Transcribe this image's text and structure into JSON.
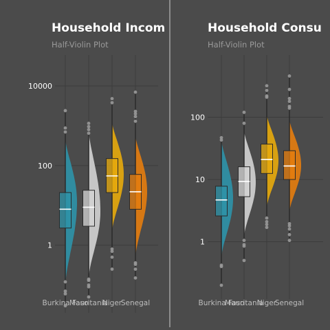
{
  "colors": {
    "background": "#4b4b4b",
    "grid": "#3c3c3c",
    "Burkina Faso": "#2e94aa",
    "Mauritania": "#d4d4d4",
    "Niger": "#e8ab0c",
    "Senegal": "#e57d0e",
    "outlier": "#9a9a9a"
  },
  "chart_data": [
    {
      "type": "half-violin with boxplot",
      "title": "Household Incom",
      "subtitle": "Half-Violin Plot",
      "y_scale": "log10",
      "ylim": [
        0.02,
        60000
      ],
      "y_ticks": [
        {
          "value": 1,
          "label": "1"
        },
        {
          "value": 100,
          "label": "100"
        },
        {
          "value": 10000,
          "label": "10000"
        }
      ],
      "categories": [
        "Burkina Faso",
        "Mauritania",
        "Niger",
        "Senegal"
      ],
      "series": [
        {
          "category": "Burkina Faso",
          "violin_range": [
            0.1,
            450
          ],
          "violin_peak": 12,
          "box": {
            "q1": 2.7,
            "median": 8,
            "q3": 21
          },
          "whiskers": [
            0.04,
            2300
          ],
          "outliers": [
            0.12,
            0.07,
            0.06,
            0.03,
            700,
            880,
            2400
          ]
        },
        {
          "category": "Mauritania",
          "violin_range": [
            0.15,
            700
          ],
          "violin_peak": 7,
          "box": {
            "q1": 3,
            "median": 9,
            "q3": 24
          },
          "whiskers": [
            0.05,
            1200
          ],
          "outliers": [
            0.09,
            0.1,
            0.13,
            0.14,
            0.05,
            650,
            800,
            950,
            1150
          ]
        },
        {
          "category": "Niger",
          "violin_range": [
            2.2,
            1200
          ],
          "violin_peak": 60,
          "box": {
            "q1": 21,
            "median": 55,
            "q3": 150
          },
          "whiskers": [
            0.25,
            4800
          ],
          "outliers": [
            0.25,
            0.5,
            0.7,
            0.8,
            3800,
            4800
          ]
        },
        {
          "category": "Senegal",
          "violin_range": [
            0.5,
            550
          ],
          "violin_peak": 23,
          "box": {
            "q1": 8,
            "median": 22,
            "q3": 60
          },
          "whiskers": [
            0.15,
            7000
          ],
          "outliers": [
            0.15,
            0.25,
            0.33,
            0.36,
            1300,
            1700,
            2000,
            2300,
            7000
          ]
        }
      ]
    },
    {
      "type": "half-violin with boxplot",
      "title": "Household Consu",
      "subtitle": "Half-Violin Plot",
      "y_scale": "log10",
      "ylim": [
        0.12,
        1000
      ],
      "y_ticks": [
        {
          "value": 1,
          "label": "1"
        },
        {
          "value": 10,
          "label": "10"
        },
        {
          "value": 100,
          "label": "100"
        }
      ],
      "categories": [
        "Burkina Faso",
        "Mauritania",
        "Niger",
        "Senegal"
      ],
      "series": [
        {
          "category": "Burkina Faso",
          "violin_range": [
            0.55,
            42
          ],
          "violin_peak": 5,
          "box": {
            "q1": 2.6,
            "median": 4.7,
            "q3": 7.8
          },
          "whiskers": [
            0.2,
            48
          ],
          "outliers": [
            0.2,
            0.4,
            0.42,
            43,
            47
          ]
        },
        {
          "category": "Mauritania",
          "violin_range": [
            1.2,
            60
          ],
          "violin_peak": 9,
          "box": {
            "q1": 5.3,
            "median": 9.3,
            "q3": 16
          },
          "whiskers": [
            0.5,
            120
          ],
          "outliers": [
            0.5,
            0.85,
            0.9,
            1.05,
            80,
            120
          ]
        },
        {
          "category": "Niger",
          "violin_range": [
            3.5,
            110
          ],
          "violin_peak": 20,
          "box": {
            "q1": 12.5,
            "median": 21,
            "q3": 37
          },
          "whiskers": [
            1.7,
            320
          ],
          "outliers": [
            1.7,
            1.9,
            2.1,
            2.4,
            210,
            220,
            270,
            320
          ]
        },
        {
          "category": "Senegal",
          "violin_range": [
            3,
            90
          ],
          "violin_peak": 17,
          "box": {
            "q1": 10,
            "median": 16.5,
            "q3": 29
          },
          "whiskers": [
            1.05,
            460
          ],
          "outliers": [
            1.05,
            1.3,
            1.6,
            1.8,
            1.95,
            140,
            150,
            180,
            200,
            280,
            460
          ]
        }
      ]
    }
  ]
}
